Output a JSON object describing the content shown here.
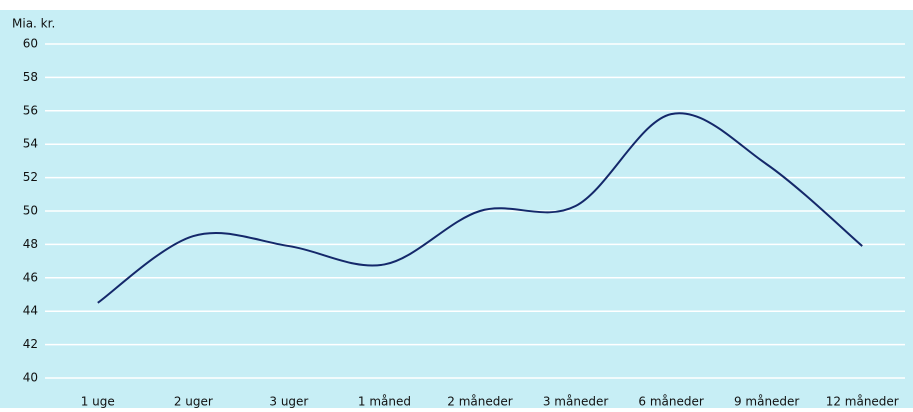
{
  "chart_data": {
    "type": "line",
    "ylabel": "Mia. kr.",
    "categories": [
      "1 uge",
      "2 uger",
      "3 uger",
      "1 måned",
      "2 måneder",
      "3 måneder",
      "6 måneder",
      "9 måneder",
      "12 måneder"
    ],
    "series": [
      {
        "color": "#14286a",
        "values": [
          44.5,
          48.5,
          47.9,
          46.8,
          50.0,
          50.3,
          55.8,
          52.8,
          47.9
        ]
      }
    ],
    "ylim": [
      40,
      60
    ],
    "yticks": [
      40,
      42,
      44,
      46,
      48,
      50,
      52,
      54,
      56,
      58,
      60
    ],
    "grid": true
  }
}
